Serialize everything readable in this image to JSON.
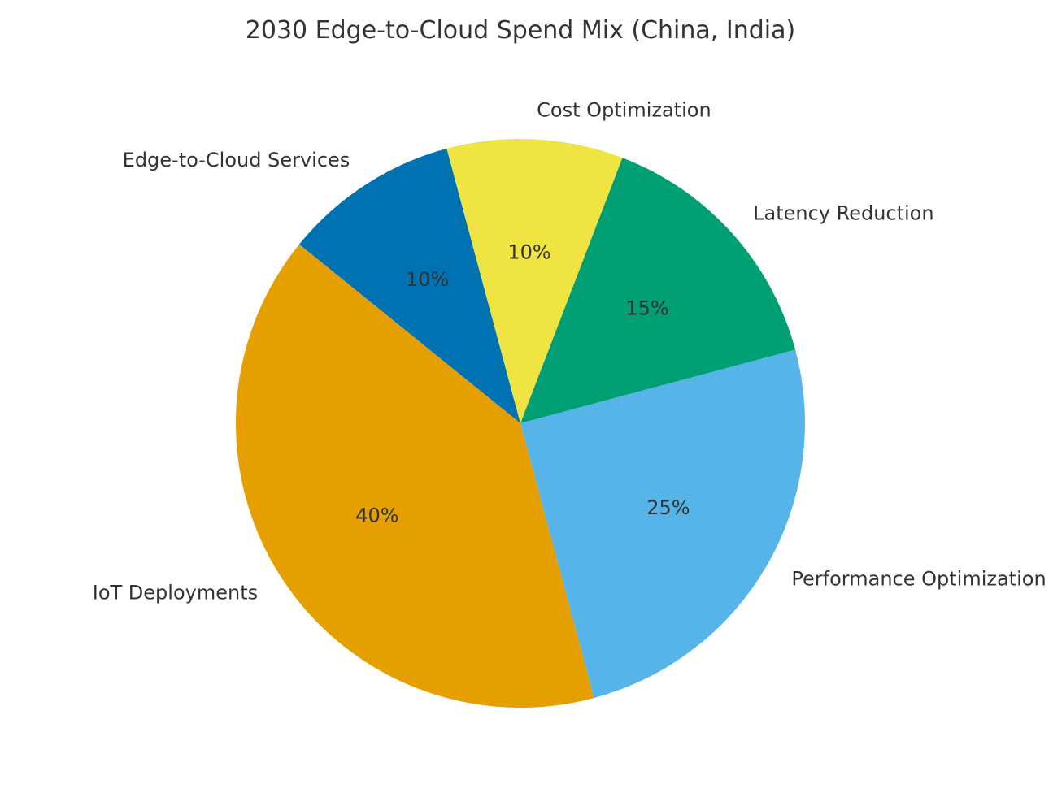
{
  "chart_data": {
    "type": "pie",
    "title": "2030 Edge-to-Cloud Spend Mix (China, India)",
    "start_angle_deg": 105,
    "direction": "counterclockwise",
    "slices": [
      {
        "label": "Edge-to-Cloud Services",
        "value": 10,
        "pct_text": "10%",
        "color": "#0072B2"
      },
      {
        "label": "IoT Deployments",
        "value": 40,
        "pct_text": "40%",
        "color": "#E69F00"
      },
      {
        "label": "Performance Optimization",
        "value": 25,
        "pct_text": "25%",
        "color": "#56B4E9"
      },
      {
        "label": "Latency Reduction",
        "value": 15,
        "pct_text": "15%",
        "color": "#009E73"
      },
      {
        "label": "Cost Optimization",
        "value": 10,
        "pct_text": "10%",
        "color": "#F0E442"
      }
    ]
  }
}
